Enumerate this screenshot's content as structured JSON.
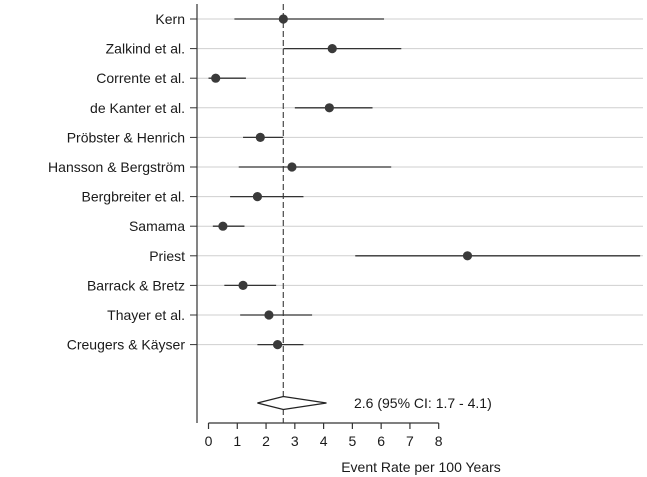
{
  "chart_data": {
    "type": "forest",
    "title": "",
    "xlabel": "Event Rate per 100 Years",
    "ylabel": "",
    "xlim": [
      -0.4,
      15.1
    ],
    "xticks": [
      0,
      1,
      2,
      3,
      4,
      5,
      6,
      7,
      8
    ],
    "grid": true,
    "reference_line": 2.6,
    "studies": [
      {
        "label": "Kern",
        "estimate": 2.6,
        "lower": 0.9,
        "upper": 6.1
      },
      {
        "label": "Zalkind et al.",
        "estimate": 4.3,
        "lower": 2.6,
        "upper": 6.7
      },
      {
        "label": "Corrente et al.",
        "estimate": 0.25,
        "lower": 0.0,
        "upper": 1.3
      },
      {
        "label": "de Kanter et al.",
        "estimate": 4.2,
        "lower": 3.0,
        "upper": 5.7
      },
      {
        "label": "Pröbster & Henrich",
        "estimate": 1.8,
        "lower": 1.2,
        "upper": 2.6
      },
      {
        "label": "Hansson & Bergström",
        "estimate": 2.9,
        "lower": 1.05,
        "upper": 6.35
      },
      {
        "label": "Bergbreiter et al.",
        "estimate": 1.7,
        "lower": 0.75,
        "upper": 3.3
      },
      {
        "label": "Samama",
        "estimate": 0.5,
        "lower": 0.15,
        "upper": 1.25
      },
      {
        "label": "Priest",
        "estimate": 9.0,
        "lower": 5.1,
        "upper": 15.0
      },
      {
        "label": "Barrack & Bretz",
        "estimate": 1.2,
        "lower": 0.55,
        "upper": 2.35
      },
      {
        "label": "Thayer et al.",
        "estimate": 2.1,
        "lower": 1.1,
        "upper": 3.6
      },
      {
        "label": "Creugers & Käyser",
        "estimate": 2.4,
        "lower": 1.7,
        "upper": 3.3
      }
    ],
    "pooled": {
      "estimate": 2.6,
      "lower": 1.7,
      "upper": 4.1,
      "label": "2.6  (95% CI: 1.7 - 4.1)"
    }
  }
}
